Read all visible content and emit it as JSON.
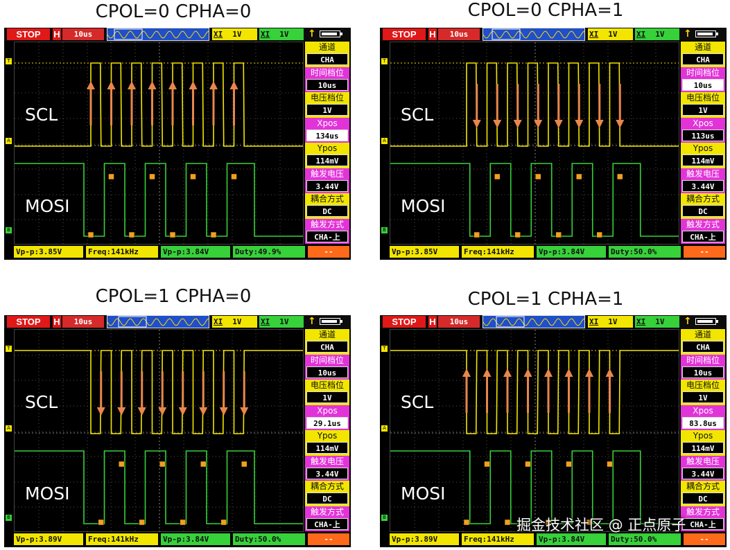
{
  "panels": [
    {
      "title": "CPOL=0 CPHA=0",
      "topbar": {
        "stop": "STOP",
        "h": "H",
        "timebase": "10us",
        "ch1_label": "XI",
        "ch1_value": "1V",
        "ch2_label": "XI",
        "ch2_value": "1V"
      },
      "signals": {
        "clock": "SCL",
        "data": "MOSI"
      },
      "sidebar": [
        {
          "label": "通道",
          "value": "CHA",
          "color": "yellow"
        },
        {
          "label": "时间档位",
          "value": "10us",
          "color": "magenta"
        },
        {
          "label": "电压档位",
          "value": "1V",
          "color": "yellow"
        },
        {
          "label": "Xpos",
          "value": "134us",
          "color": "magenta",
          "highlight": true
        },
        {
          "label": "Ypos",
          "value": "114mV",
          "color": "yellow"
        },
        {
          "label": "触发电压",
          "value": "3.44V",
          "color": "magenta"
        },
        {
          "label": "耦合方式",
          "value": "DC",
          "color": "yellow"
        },
        {
          "label": "触发方式",
          "value": "CHA-上",
          "color": "magenta"
        }
      ],
      "bottom": {
        "vpp1": "Vp-p:3.85V",
        "freq": "Freq:141kHz",
        "vpp2": "Vp-p:3.84V",
        "duty": "Duty:49.9%",
        "extra": "--"
      }
    },
    {
      "title": "CPOL=0 CPHA=1",
      "topbar": {
        "stop": "STOP",
        "h": "H",
        "timebase": "10us",
        "ch1_label": "XI",
        "ch1_value": "1V",
        "ch2_label": "XI",
        "ch2_value": "1V"
      },
      "signals": {
        "clock": "SCL",
        "data": "MOSI"
      },
      "sidebar": [
        {
          "label": "通道",
          "value": "CHA",
          "color": "yellow"
        },
        {
          "label": "时间档位",
          "value": "10us",
          "color": "magenta",
          "highlight": true
        },
        {
          "label": "电压档位",
          "value": "1V",
          "color": "yellow"
        },
        {
          "label": "Xpos",
          "value": "113us",
          "color": "magenta"
        },
        {
          "label": "Ypos",
          "value": "114mV",
          "color": "yellow"
        },
        {
          "label": "触发电压",
          "value": "3.44V",
          "color": "magenta"
        },
        {
          "label": "耦合方式",
          "value": "DC",
          "color": "yellow"
        },
        {
          "label": "触发方式",
          "value": "CHA-上",
          "color": "magenta"
        }
      ],
      "bottom": {
        "vpp1": "Vp-p:3.85V",
        "freq": "Freq:141kHz",
        "vpp2": "Vp-p:3.84V",
        "duty": "Duty:50.0%",
        "extra": "--"
      }
    },
    {
      "title": "CPOL=1 CPHA=0",
      "topbar": {
        "stop": "STOP",
        "h": "H",
        "timebase": "10us",
        "ch1_label": "XI",
        "ch1_value": "1V",
        "ch2_label": "XI",
        "ch2_value": "1V"
      },
      "signals": {
        "clock": "SCL",
        "data": "MOSI"
      },
      "sidebar": [
        {
          "label": "通道",
          "value": "CHA",
          "color": "yellow"
        },
        {
          "label": "时间档位",
          "value": "10us",
          "color": "magenta"
        },
        {
          "label": "电压档位",
          "value": "1V",
          "color": "yellow"
        },
        {
          "label": "Xpos",
          "value": "29.1us",
          "color": "magenta",
          "highlight": true
        },
        {
          "label": "Ypos",
          "value": "114mV",
          "color": "yellow"
        },
        {
          "label": "触发电压",
          "value": "3.44V",
          "color": "magenta"
        },
        {
          "label": "耦合方式",
          "value": "DC",
          "color": "yellow"
        },
        {
          "label": "触发方式",
          "value": "CHA-上",
          "color": "magenta"
        }
      ],
      "bottom": {
        "vpp1": "Vp-p:3.89V",
        "freq": "Freq:141kHz",
        "vpp2": "Vp-p:3.84V",
        "duty": "Duty:50.0%",
        "extra": "--"
      }
    },
    {
      "title": "CPOL=1 CPHA=1",
      "topbar": {
        "stop": "STOP",
        "h": "H",
        "timebase": "10us",
        "ch1_label": "XI",
        "ch1_value": "1V",
        "ch2_label": "XI",
        "ch2_value": "1V"
      },
      "signals": {
        "clock": "SCL",
        "data": "MOSI"
      },
      "sidebar": [
        {
          "label": "通道",
          "value": "CHA",
          "color": "yellow"
        },
        {
          "label": "时间档位",
          "value": "10us",
          "color": "magenta"
        },
        {
          "label": "电压档位",
          "value": "1V",
          "color": "yellow"
        },
        {
          "label": "Xpos",
          "value": "83.8us",
          "color": "magenta",
          "highlight": true
        },
        {
          "label": "Ypos",
          "value": "114mV",
          "color": "yellow"
        },
        {
          "label": "触发电压",
          "value": "3.44V",
          "color": "magenta"
        },
        {
          "label": "耦合方式",
          "value": "DC",
          "color": "yellow"
        },
        {
          "label": "触发方式",
          "value": "CHA-上",
          "color": "magenta"
        }
      ],
      "bottom": {
        "vpp1": "Vp-p:3.89V",
        "freq": "Freq:141kHz",
        "vpp2": "Vp-p:3.84V",
        "duty": "Duty:50.0%",
        "extra": "--"
      }
    }
  ],
  "watermark": "掘金技术社区 @ 正点原子",
  "colors": {
    "clock_trace": "#f2e600",
    "data_trace": "#37d13a",
    "arrow": "#e8874a",
    "sample_marker": "#f0a020"
  }
}
